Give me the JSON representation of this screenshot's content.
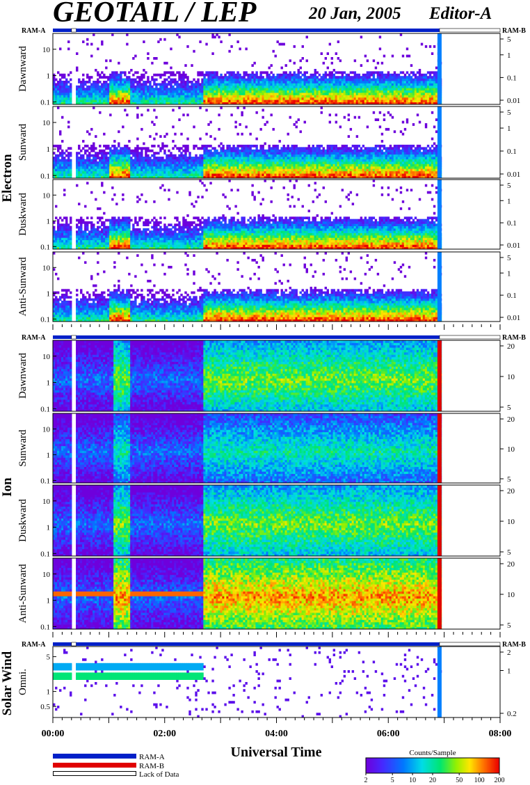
{
  "header": {
    "title": "GEOTAIL / LEP",
    "date": "20 Jan, 2005",
    "editor": "Editor-A"
  },
  "labels": {
    "ram_a": "RAM-A",
    "ram_b": "RAM-B",
    "lack": "Lack of Data",
    "xlabel": "Universal Time",
    "colorbar_title": "Counts/Sample"
  },
  "groups": [
    {
      "name": "Electron"
    },
    {
      "name": "Ion"
    },
    {
      "name": "Solar Wind"
    }
  ],
  "colors": {
    "ram_a": "#0020c8",
    "ram_b": "#e00000",
    "lack": "#ffffff"
  },
  "chart_data": {
    "type": "heatmap",
    "x_axis": {
      "label": "Universal Time",
      "ticks": [
        "00:00",
        "02:00",
        "04:00",
        "06:00",
        "08:00"
      ],
      "range": [
        "00:00",
        "08:00"
      ]
    },
    "colorbar": {
      "label": "Counts/Sample",
      "ticks": [
        2,
        5,
        10,
        20,
        50,
        100,
        200
      ],
      "scale": "log"
    },
    "status_bar_segments": [
      {
        "from": "00:00",
        "to": "00:20",
        "state": "RAM-A"
      },
      {
        "from": "00:20",
        "to": "00:25",
        "state": "Lack of Data"
      },
      {
        "from": "00:25",
        "to": "06:55",
        "state": "RAM-A"
      },
      {
        "from": "06:55",
        "to": "08:00",
        "state": "Lack of Data"
      }
    ],
    "panels": [
      {
        "group": "Electron",
        "direction": "Dawnward",
        "left_ticks": [
          "0.1",
          "1",
          "10"
        ],
        "left_range": [
          0.08,
          40
        ],
        "right_ticks": [
          "0.01",
          "0.1",
          "1",
          "5"
        ],
        "scale": "log"
      },
      {
        "group": "Electron",
        "direction": "Sunward",
        "left_ticks": [
          "0.1",
          "1",
          "10"
        ],
        "left_range": [
          0.08,
          40
        ],
        "right_ticks": [
          "0.01",
          "0.1",
          "1",
          "5"
        ],
        "scale": "log"
      },
      {
        "group": "Electron",
        "direction": "Duskward",
        "left_ticks": [
          "0.1",
          "1",
          "10"
        ],
        "left_range": [
          0.08,
          40
        ],
        "right_ticks": [
          "0.01",
          "0.1",
          "1",
          "5"
        ],
        "scale": "log"
      },
      {
        "group": "Electron",
        "direction": "Anti-Sunward",
        "left_ticks": [
          "0.1",
          "1",
          "10"
        ],
        "left_range": [
          0.08,
          40
        ],
        "right_ticks": [
          "0.01",
          "0.1",
          "1",
          "5"
        ],
        "scale": "log"
      },
      {
        "group": "Ion",
        "direction": "Dawnward",
        "left_ticks": [
          "0.1",
          "1",
          "10"
        ],
        "left_range": [
          0.08,
          40
        ],
        "right_ticks": [
          "5",
          "10",
          "20"
        ],
        "scale": "log"
      },
      {
        "group": "Ion",
        "direction": "Sunward",
        "left_ticks": [
          "0.1",
          "1",
          "10"
        ],
        "left_range": [
          0.08,
          40
        ],
        "right_ticks": [
          "5",
          "10",
          "20"
        ],
        "scale": "log"
      },
      {
        "group": "Ion",
        "direction": "Duskward",
        "left_ticks": [
          "0.1",
          "1",
          "10"
        ],
        "left_range": [
          0.08,
          40
        ],
        "right_ticks": [
          "5",
          "10",
          "20"
        ],
        "scale": "log"
      },
      {
        "group": "Ion",
        "direction": "Anti-Sunward",
        "left_ticks": [
          "0.1",
          "1",
          "10"
        ],
        "left_range": [
          0.08,
          40
        ],
        "right_ticks": [
          "5",
          "10",
          "20"
        ],
        "scale": "log"
      },
      {
        "group": "Solar Wind",
        "direction": "Omni.",
        "left_ticks": [
          "0.5",
          "1",
          "5"
        ],
        "left_range": [
          0.3,
          8
        ],
        "right_ticks": [
          "0.2",
          "1",
          "2"
        ],
        "scale": "log"
      }
    ]
  }
}
